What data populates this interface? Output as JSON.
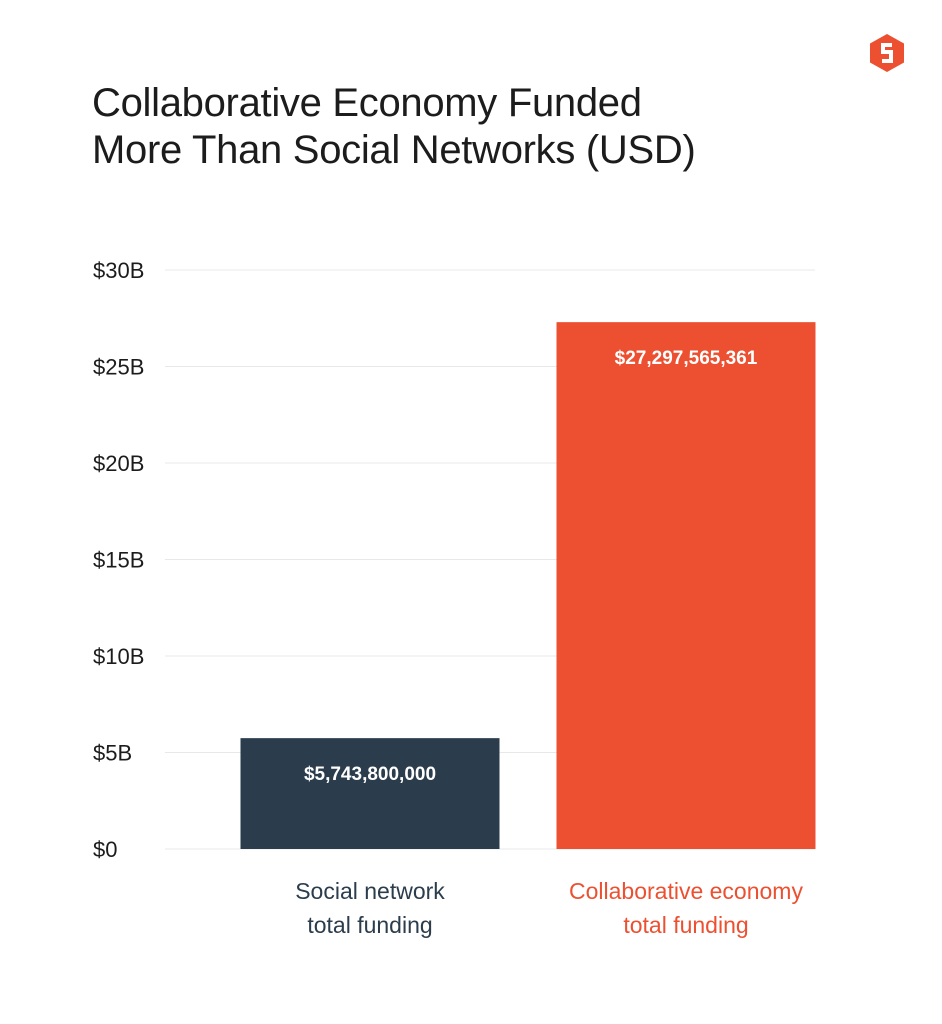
{
  "title_lines": [
    "Collaborative Economy Funded",
    "More Than Social Networks (USD)"
  ],
  "logo_icon": "brand-s-logo-icon",
  "colors": {
    "accent": "#ec5030",
    "dark": "#2b3d4c",
    "grid": "#e8e8e8",
    "text": "#1c1c1c"
  },
  "chart_data": {
    "type": "bar",
    "title": "Collaborative Economy Funded More Than Social Networks (USD)",
    "categories": [
      [
        "Social network",
        "total funding"
      ],
      [
        "Collaborative economy",
        "total funding"
      ]
    ],
    "values": [
      5743800000,
      27297565361
    ],
    "data_labels": [
      "$5,743,800,000",
      "$27,297,565,361"
    ],
    "bar_colors": [
      "#2b3d4c",
      "#ec5030"
    ],
    "category_label_colors": [
      "#2b3d4c",
      "#ec5030"
    ],
    "y_ticks": [
      0,
      5000000000,
      10000000000,
      15000000000,
      20000000000,
      25000000000,
      30000000000
    ],
    "y_tick_labels": [
      "$0",
      "$5B",
      "$10B",
      "$15B",
      "$20B",
      "$25B",
      "$30B"
    ],
    "ylim": [
      0,
      30000000000
    ],
    "xlabel": "",
    "ylabel": "",
    "grid": true,
    "legend": "none"
  }
}
